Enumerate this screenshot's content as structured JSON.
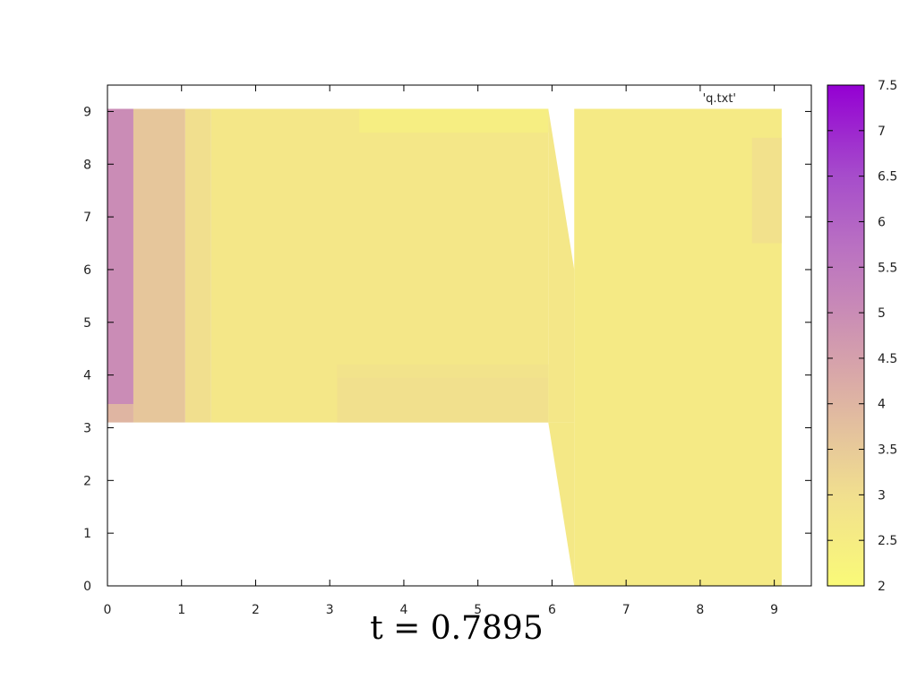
{
  "chart_data": {
    "type": "heatmap",
    "title": "t = 0.7895",
    "legend": "'q.txt'",
    "xlim": [
      0,
      9.5
    ],
    "ylim": [
      0,
      9.5
    ],
    "x_ticks": [
      "0",
      "1",
      "2",
      "3",
      "4",
      "5",
      "6",
      "7",
      "8",
      "9"
    ],
    "y_ticks": [
      "0",
      "1",
      "2",
      "3",
      "4",
      "5",
      "6",
      "7",
      "8",
      "9"
    ],
    "colorbar": {
      "range": [
        2,
        7.5
      ],
      "ticks": [
        "2",
        "2.5",
        "3",
        "3.5",
        "4",
        "4.5",
        "5",
        "5.5",
        "6",
        "6.5",
        "7",
        "7.5"
      ],
      "low_color": "#fafa78",
      "high_color": "#9400d3"
    },
    "cells": [
      {
        "x": [
          0,
          0.35
        ],
        "y": [
          3.45,
          9.05
        ],
        "value": 5.0
      },
      {
        "x": [
          0,
          0.35
        ],
        "y": [
          3.1,
          3.45
        ],
        "value": 4.0
      },
      {
        "x": [
          0.35,
          1.05
        ],
        "y": [
          3.1,
          9.05
        ],
        "value": 3.6
      },
      {
        "x": [
          1.05,
          1.4
        ],
        "y": [
          3.1,
          9.05
        ],
        "value": 3.0
      },
      {
        "x": [
          1.4,
          5.95
        ],
        "y": [
          3.1,
          9.05
        ],
        "value": 2.7
      },
      {
        "x": [
          3.1,
          5.95
        ],
        "y": [
          3.1,
          3.95
        ],
        "value": 2.95
      },
      {
        "x": [
          3.1,
          5.95
        ],
        "y": [
          3.95,
          4.2
        ],
        "value": 2.85
      },
      {
        "x": [
          3.4,
          5.95
        ],
        "y": [
          8.6,
          9.05
        ],
        "value": 2.45
      },
      {
        "x": [
          6.3,
          9.1
        ],
        "y": [
          0,
          9.05
        ],
        "value": 2.6
      },
      {
        "x": [
          8.7,
          9.1
        ],
        "y": [
          6.5,
          8.5
        ],
        "value": 2.9
      }
    ],
    "slanted_band": {
      "x_top": 5.95,
      "x_bottom": 6.3,
      "notch_top": 6.3,
      "notch_bottom": 6.0,
      "value": 2.7
    }
  }
}
